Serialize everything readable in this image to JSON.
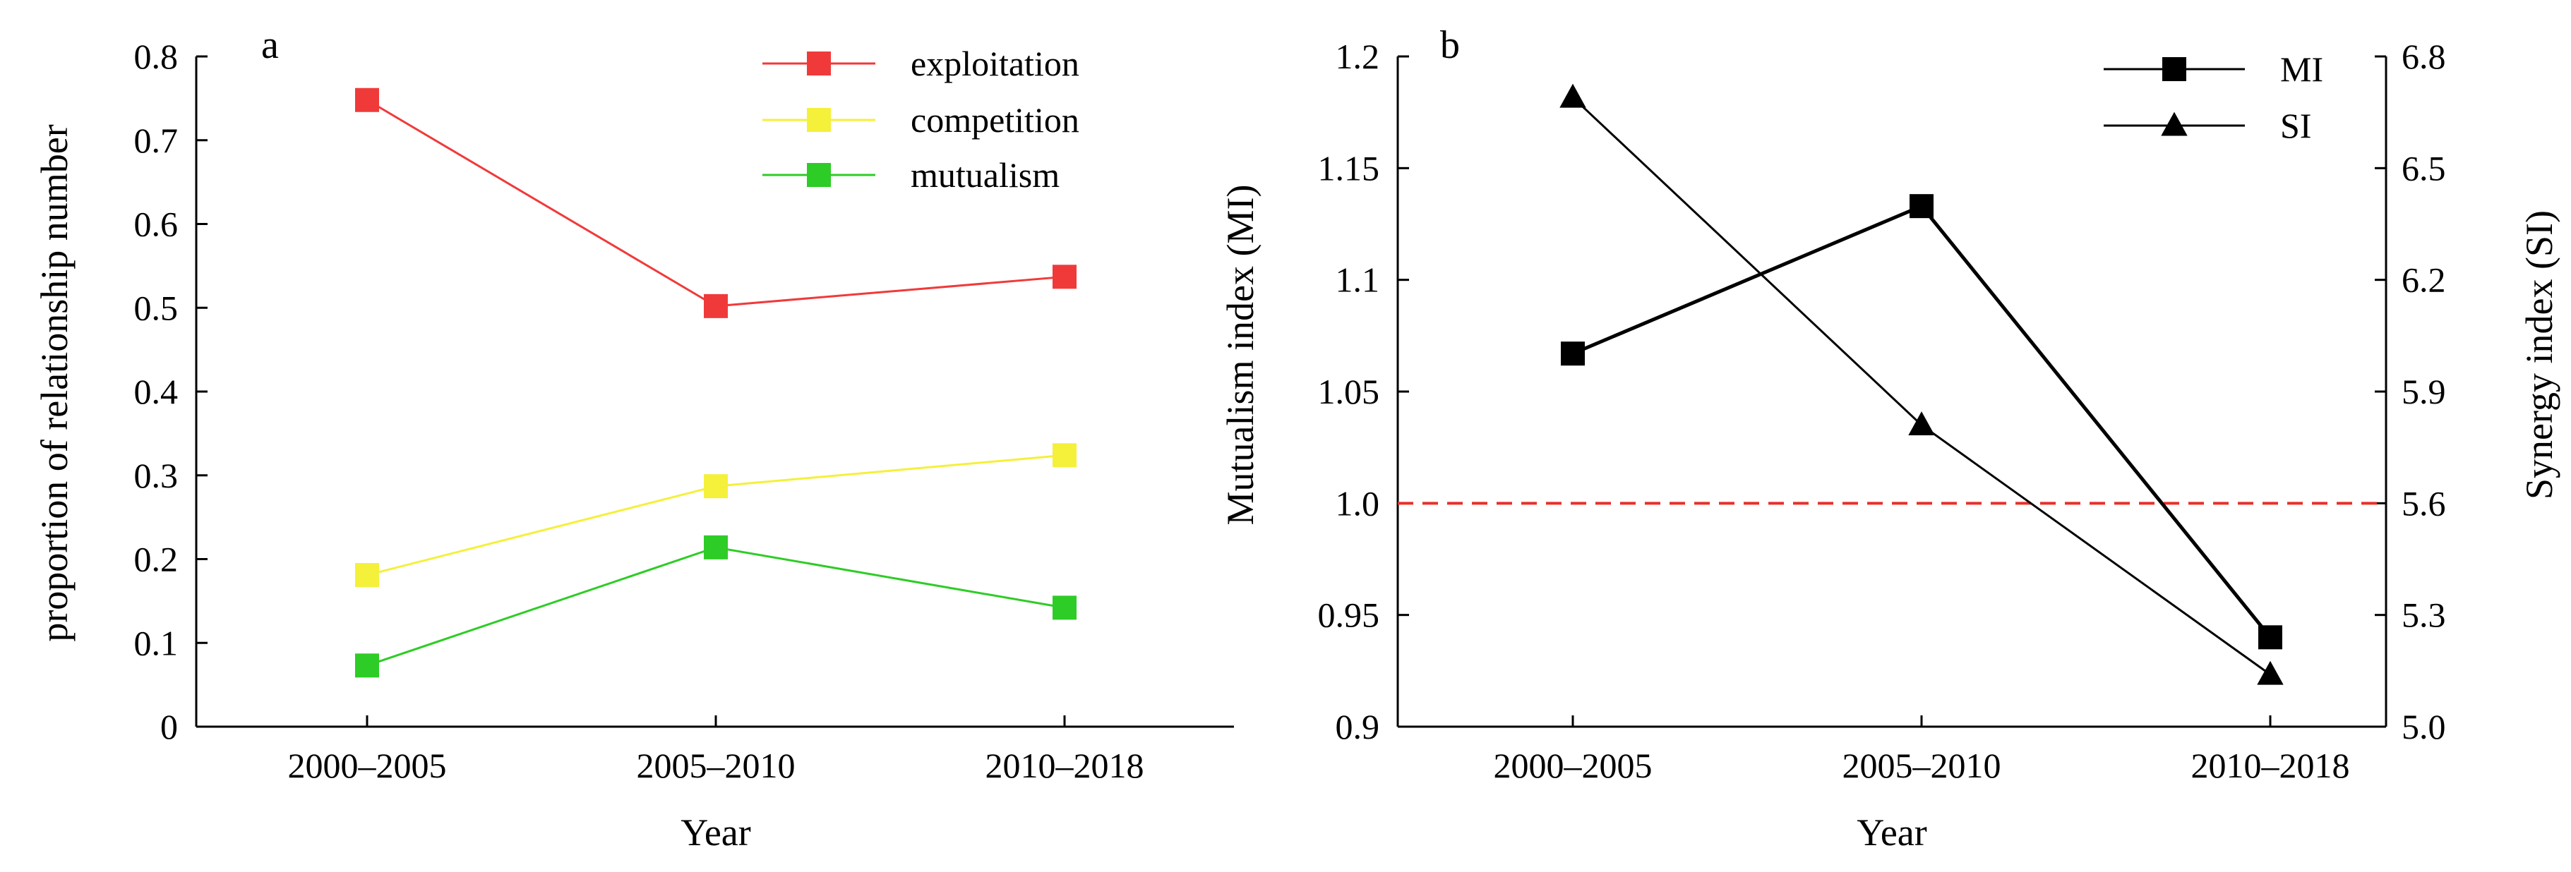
{
  "chart_data": [
    {
      "type": "line",
      "panel_label": "a",
      "title": "",
      "xlabel": "Year",
      "ylabel": "proportion of relationship number",
      "categories": [
        "2000–2005",
        "2005–2010",
        "2010–2018"
      ],
      "ylim": [
        0,
        0.8
      ],
      "yticks": [
        "0",
        "0.1",
        "0.2",
        "0.3",
        "0.4",
        "0.5",
        "0.6",
        "0.7",
        "0.8"
      ],
      "legend_position": "top-right",
      "grid": false,
      "series": [
        {
          "name": "exploitation",
          "color": "#f03a3a",
          "marker": "square",
          "values": [
            0.748,
            0.502,
            0.537
          ]
        },
        {
          "name": "competition",
          "color": "#f5f03a",
          "marker": "square",
          "values": [
            0.181,
            0.287,
            0.324
          ]
        },
        {
          "name": "mutualism",
          "color": "#2ecc26",
          "marker": "square",
          "values": [
            0.073,
            0.214,
            0.142
          ]
        }
      ]
    },
    {
      "type": "line",
      "panel_label": "b",
      "title": "",
      "xlabel": "Year",
      "ylabel": "Mutualism index (MI)",
      "y2label": "Synergy index (SI)",
      "categories": [
        "2000–2005",
        "2005–2010",
        "2010–2018"
      ],
      "ylim": [
        0.9,
        1.2
      ],
      "yticks": [
        "0.9",
        "0.95",
        "1.0",
        "1.05",
        "1.1",
        "1.15",
        "1.2"
      ],
      "y2lim": [
        5.0,
        6.8
      ],
      "y2ticks": [
        "5.0",
        "5.3",
        "5.6",
        "5.9",
        "6.2",
        "6.5",
        "6.8"
      ],
      "legend_position": "top-right",
      "grid": false,
      "reference_line": {
        "axis": "y",
        "value": 1.0,
        "color": "#e8302a",
        "style": "dashed"
      },
      "series": [
        {
          "name": "MI",
          "axis": "left",
          "color": "#000000",
          "marker": "square",
          "values": [
            1.067,
            1.133,
            0.94
          ]
        },
        {
          "name": "SI",
          "axis": "right",
          "color": "#000000",
          "marker": "triangle",
          "values": [
            6.69,
            5.81,
            5.14
          ]
        }
      ]
    }
  ]
}
